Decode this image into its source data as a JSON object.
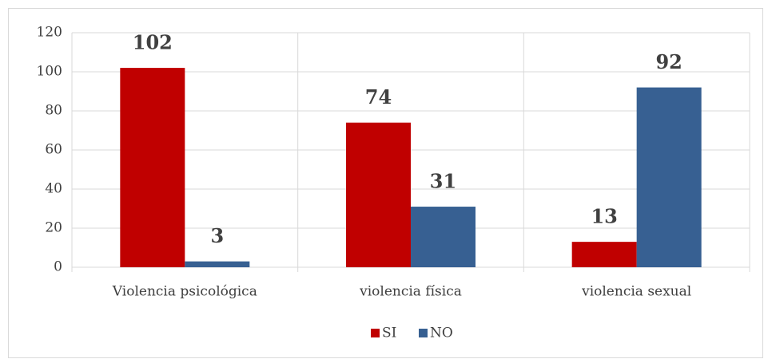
{
  "chart_data": {
    "type": "bar",
    "categories": [
      "Violencia psicológica",
      "violencia física",
      "violencia sexual"
    ],
    "series": [
      {
        "name": "SI",
        "color": "#c00000",
        "values": [
          102,
          74,
          13
        ]
      },
      {
        "name": "NO",
        "color": "#376092",
        "values": [
          3,
          31,
          92
        ]
      }
    ],
    "ylim": [
      0,
      120
    ],
    "yticks": [
      0,
      20,
      40,
      60,
      80,
      100,
      120
    ],
    "grid": true,
    "legend": "bottom"
  }
}
